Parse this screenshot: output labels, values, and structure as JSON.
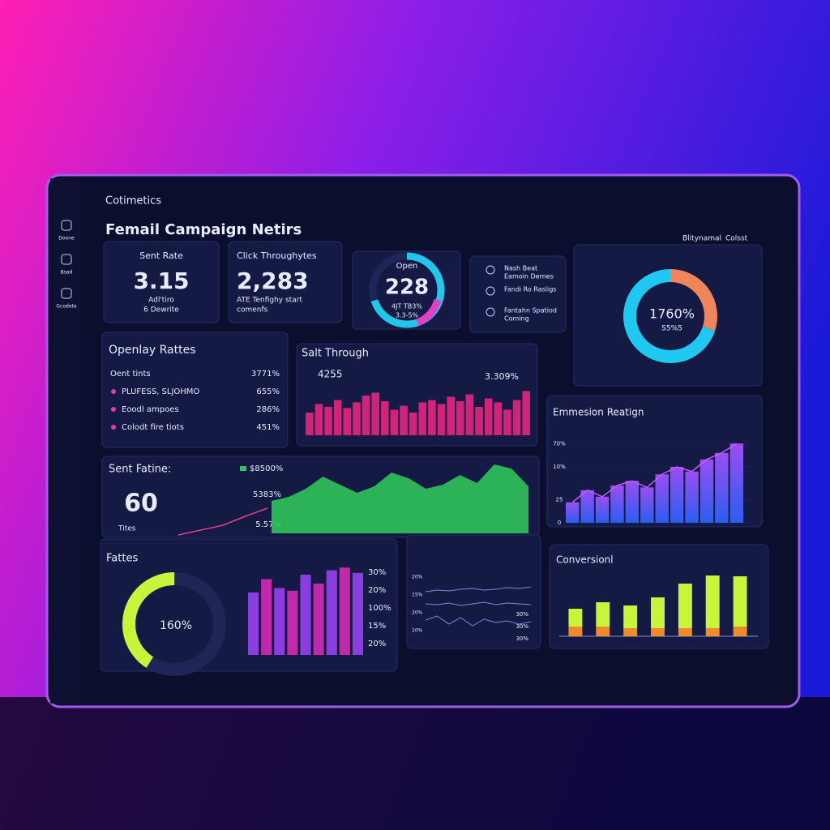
{
  "brand": "Cotimetics",
  "title": "Femail Campaign Netirs",
  "sidebar": [
    "Doone",
    "Bsad",
    "Gcodeta"
  ],
  "toplinks": [
    "Blitynamal",
    "Colsst"
  ],
  "kpis": [
    {
      "label": "Sent Rate",
      "value": "3.15",
      "sub": [
        "Adl'tiro",
        "6 Dewrite"
      ]
    },
    {
      "label": "Click Throughytes",
      "value": "2,283",
      "sub": [
        "ATE Tenfighy start",
        "comenfs"
      ]
    }
  ],
  "gauge_open": {
    "label": "Open",
    "value": "228",
    "sub": [
      "4JT TB3%",
      "3.3-5%"
    ],
    "fill": 70,
    "color": "#22c6e8",
    "accent": "#e040c8"
  },
  "checklist": [
    [
      "Nash Beat",
      "Eamoin Dernes"
    ],
    [
      "Fandi Ro Rasligs"
    ],
    [
      "Fantahn Spatiod",
      "Coming"
    ]
  ],
  "donut": {
    "value": "1760%",
    "sub": "S5%5",
    "segments": [
      {
        "color": "#f0845a",
        "value": 30
      },
      {
        "color": "#1ec8f0",
        "value": 70
      }
    ]
  },
  "openlay": {
    "title": "Openlay Rattes",
    "rows": [
      [
        "Oent tints",
        "3771%"
      ],
      [
        "PLUFESS, SLJOHMO",
        "655%"
      ],
      [
        "Eoodl ampoes",
        "286%"
      ],
      [
        "Colodt fire tiots",
        "451%"
      ]
    ]
  },
  "salt": {
    "title": "Salt Through",
    "left": "4255",
    "right": "3.309%",
    "color": "#d0237a",
    "values": [
      40,
      55,
      50,
      62,
      48,
      58,
      70,
      75,
      60,
      45,
      52,
      40,
      58,
      62,
      55,
      68,
      60,
      72,
      50,
      65,
      58,
      45,
      62,
      78
    ]
  },
  "sent": {
    "title": "Sent Fatine:",
    "value": "60",
    "sub": "Tites",
    "legend": "$8500%",
    "labels": [
      "5383%",
      "5.57%"
    ],
    "color": "#2fc35a",
    "line_color": "#e0408a",
    "area": [
      40,
      45,
      55,
      70,
      60,
      50,
      58,
      75,
      68,
      55,
      60,
      72,
      62,
      85,
      80,
      58
    ],
    "line": [
      2,
      8,
      14,
      25,
      35
    ]
  },
  "emmesion": {
    "title": "Emmesion Reatign",
    "ylim": [
      0,
      100
    ],
    "yticks": [
      {
        "value": 85,
        "label": "70%"
      },
      {
        "value": 60,
        "label": "10%"
      },
      25,
      0
    ],
    "values": [
      22,
      35,
      28,
      40,
      45,
      38,
      52,
      60,
      55,
      68,
      75,
      85
    ],
    "color_top": "#9b4ef0",
    "color_bottom": "#2a5ef0"
  },
  "fattes": {
    "title": "Fattes",
    "gauge": "160%",
    "gauge_fill": 82,
    "gauge_color": "#c8f53a",
    "bars": [
      70,
      85,
      75,
      72,
      90,
      80,
      95,
      98,
      92
    ],
    "bar_colors": [
      "#8a3ee0",
      "#c02aa8"
    ],
    "labels": [
      "30%",
      "20%",
      "100%",
      "15%",
      "20%"
    ]
  },
  "lines": {
    "left_labels": [
      "20%",
      "15%",
      "20%",
      "10%"
    ],
    "right_labels": [
      "30%",
      "30%",
      "30%"
    ],
    "series": [
      [
        60,
        62,
        61,
        63,
        64,
        62,
        63,
        65,
        64,
        66
      ],
      [
        45,
        44,
        46,
        43,
        45,
        47,
        44,
        46,
        45,
        44
      ],
      [
        25,
        30,
        20,
        28,
        18,
        26,
        22,
        24,
        20,
        23
      ]
    ],
    "color": "#7a8ad8"
  },
  "conversion": {
    "title": "Conversionl",
    "colors": [
      "#c8f53a",
      "#f08a2a"
    ],
    "bars": [
      [
        22,
        12
      ],
      [
        30,
        12
      ],
      [
        28,
        10
      ],
      [
        38,
        10
      ],
      [
        55,
        10
      ],
      [
        65,
        10
      ],
      [
        62,
        12
      ]
    ]
  }
}
